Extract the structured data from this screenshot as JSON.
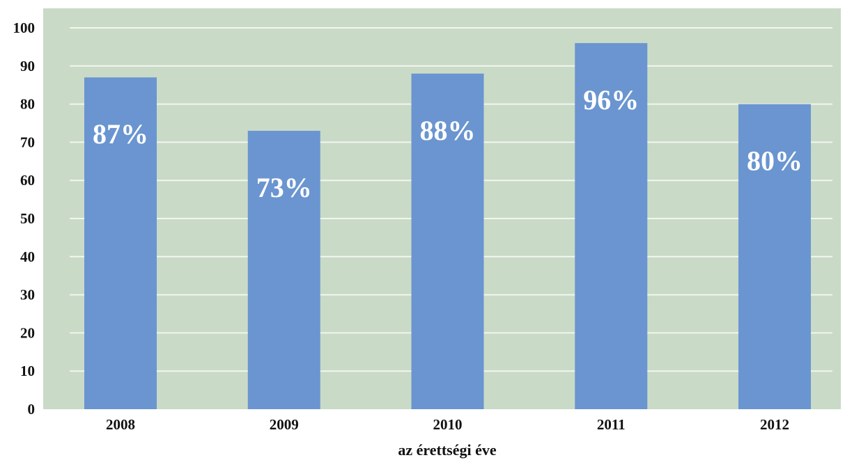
{
  "chart_data": {
    "type": "bar",
    "categories": [
      "2008",
      "2009",
      "2010",
      "2011",
      "2012"
    ],
    "values": [
      87,
      73,
      88,
      96,
      80
    ],
    "data_labels": [
      "87%",
      "73%",
      "88%",
      "96%",
      "80%"
    ],
    "xlabel": "az érettségi éve",
    "ylabel": "",
    "ylim": [
      0,
      100
    ],
    "yticks": [
      "0",
      "10",
      "20",
      "30",
      "40",
      "50",
      "60",
      "70",
      "80",
      "90",
      "100"
    ],
    "grid": true,
    "legend": "none",
    "colors": {
      "bar": "#6a95d0",
      "plot_background": "#c9dac7",
      "gridline": "#f2f6ef",
      "data_label": "#ffffff"
    }
  }
}
